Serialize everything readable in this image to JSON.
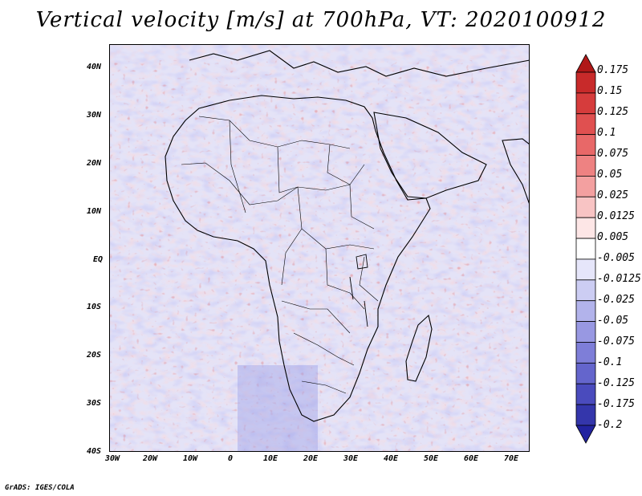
{
  "title": "Vertical velocity [m/s] at 700hPa, VT: 2020100912",
  "credit": "GrADS: IGES/COLA",
  "map": {
    "projection": "lat-lon",
    "lon_range": [
      -30,
      75
    ],
    "lat_range": [
      -40,
      45
    ],
    "variable": "vertical velocity",
    "units": "m/s",
    "level": "700hPa",
    "valid_time": "2020100912",
    "x_ticks": [
      "30W",
      "20W",
      "10W",
      "0",
      "10E",
      "20E",
      "30E",
      "40E",
      "50E",
      "60E",
      "70E"
    ],
    "y_ticks": [
      "40N",
      "30N",
      "20N",
      "10N",
      "EQ",
      "10S",
      "20S",
      "30S",
      "40S"
    ]
  },
  "colorbar": {
    "labels": [
      "0.175",
      "0.15",
      "0.125",
      "0.1",
      "0.075",
      "0.05",
      "0.025",
      "0.0125",
      "0.005",
      "-0.005",
      "-0.0125",
      "-0.025",
      "-0.05",
      "-0.075",
      "-0.1",
      "-0.125",
      "-0.175",
      "-0.2"
    ],
    "colors": [
      "#b01818",
      "#c82a2a",
      "#d63c3c",
      "#e05050",
      "#e86868",
      "#ee8282",
      "#f3a0a0",
      "#f8c4c4",
      "#fde6e6",
      "#ffffff",
      "#e6e6fa",
      "#cccdf3",
      "#b2b3eb",
      "#9898e2",
      "#7e7ed8",
      "#6465cc",
      "#4a4bbd",
      "#3436ab",
      "#2223a0"
    ]
  },
  "colors": {
    "land_outline": "#000000",
    "background": "#ffffff"
  }
}
